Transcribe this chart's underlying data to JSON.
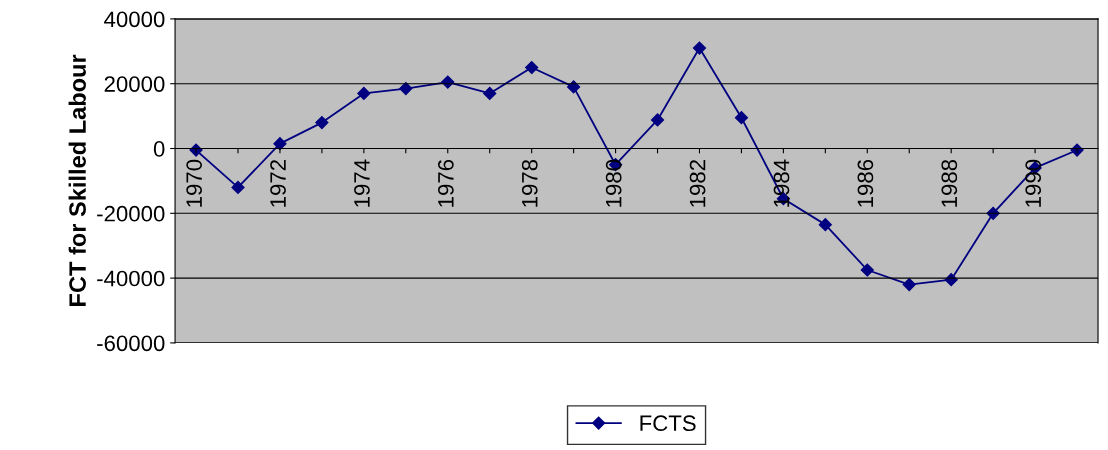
{
  "chart_data": {
    "type": "line",
    "ylabel": "FCT for Skilled Labour",
    "categories": [
      "1970",
      null,
      "1972",
      null,
      "1974",
      null,
      "1976",
      null,
      "1978",
      null,
      "1980",
      null,
      "1982",
      null,
      "1984",
      null,
      "1986",
      null,
      "1988",
      null,
      "1990",
      null
    ],
    "series": [
      {
        "name": "FCTS",
        "color": "#000080",
        "values": [
          -500,
          -12000,
          1500,
          8000,
          17000,
          18500,
          20500,
          17000,
          25000,
          19000,
          -5000,
          8800,
          31000,
          9500,
          -15500,
          -23500,
          -37500,
          -42000,
          -40500,
          -20000,
          -6000,
          -500
        ]
      }
    ],
    "ylim": [
      -60000,
      40000
    ],
    "yticks": [
      -60000,
      -40000,
      -20000,
      0,
      20000,
      40000
    ],
    "grid": "y",
    "legend": "bottom",
    "marker": "diamond",
    "line_style": "solid"
  }
}
